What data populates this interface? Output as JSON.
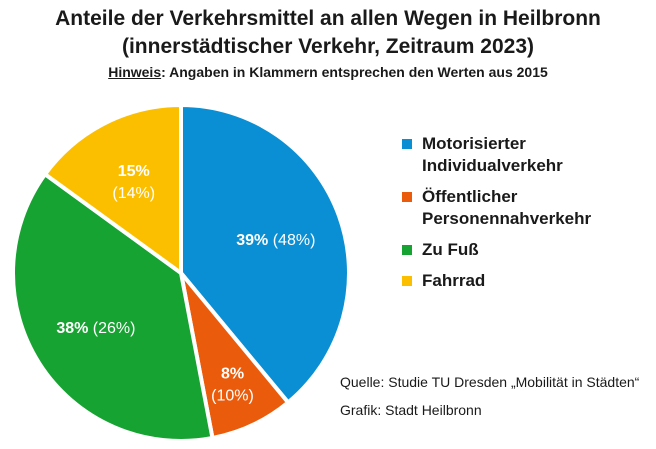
{
  "header": {
    "title_line1": "Anteile der Verkehrsmittel an allen Wegen in Heilbronn",
    "title_line2": "(innerstädtischer Verkehr, Zeitraum 2023)",
    "note_label": "Hinweis",
    "note_text": ": Angaben in Klammern entsprechen den Werten aus 2015"
  },
  "chart_data": {
    "type": "pie",
    "title": "Anteile der Verkehrsmittel an allen Wegen in Heilbronn (innerstädtischer Verkehr, Zeitraum 2023)",
    "categories": [
      "Motorisierter Individualverkehr",
      "Öffentlicher Personennahverkehr",
      "Zu Fuß",
      "Fahrrad"
    ],
    "series": [
      {
        "name": "2023",
        "values": [
          39,
          8,
          38,
          15
        ]
      },
      {
        "name": "2015",
        "values": [
          48,
          10,
          26,
          14
        ]
      }
    ],
    "labels_2023": [
      "39%",
      "8%",
      "38%",
      "15%"
    ],
    "labels_2015": [
      "(48%)",
      "(10%)",
      "(26%)",
      "(14%)"
    ],
    "colors": [
      "#0a8fd4",
      "#ea5b0c",
      "#17a332",
      "#fcbf00"
    ],
    "legend": [
      {
        "line1": "Motorisierter",
        "line2": "Individualverkehr",
        "color": "#0a8fd4"
      },
      {
        "line1": "Öffentlicher",
        "line2": "Personennahverkehr",
        "color": "#ea5b0c"
      },
      {
        "line1": "Zu Fuß",
        "line2": "",
        "color": "#17a332"
      },
      {
        "line1": "Fahrrad",
        "line2": "",
        "color": "#fcbf00"
      }
    ],
    "legend_position": "right"
  },
  "footer": {
    "source": "Quelle: Studie TU Dresden „Mobilität in Städten“",
    "graphic": "Grafik: Stadt Heilbronn"
  }
}
